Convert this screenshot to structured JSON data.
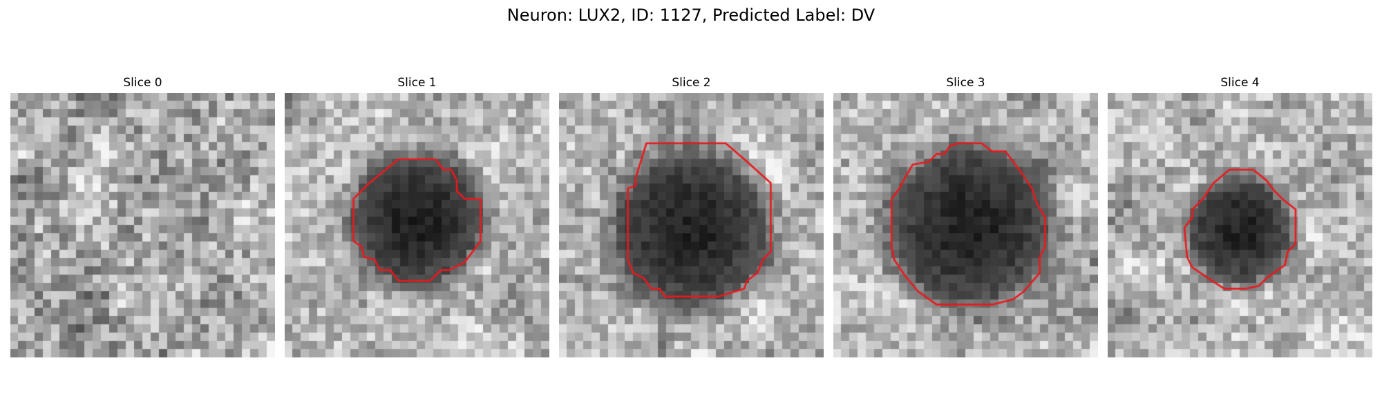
{
  "figure": {
    "title": "Neuron: LUX2, ID: 1127, Predicted Label: DV"
  },
  "colors": {
    "contour": "#e8191c",
    "background": "#ffffff"
  },
  "slices": [
    {
      "label": "Slice 0",
      "has_contour": false
    },
    {
      "label": "Slice 1",
      "has_contour": true
    },
    {
      "label": "Slice 2",
      "has_contour": true
    },
    {
      "label": "Slice 3",
      "has_contour": true
    },
    {
      "label": "Slice 4",
      "has_contour": true
    }
  ]
}
